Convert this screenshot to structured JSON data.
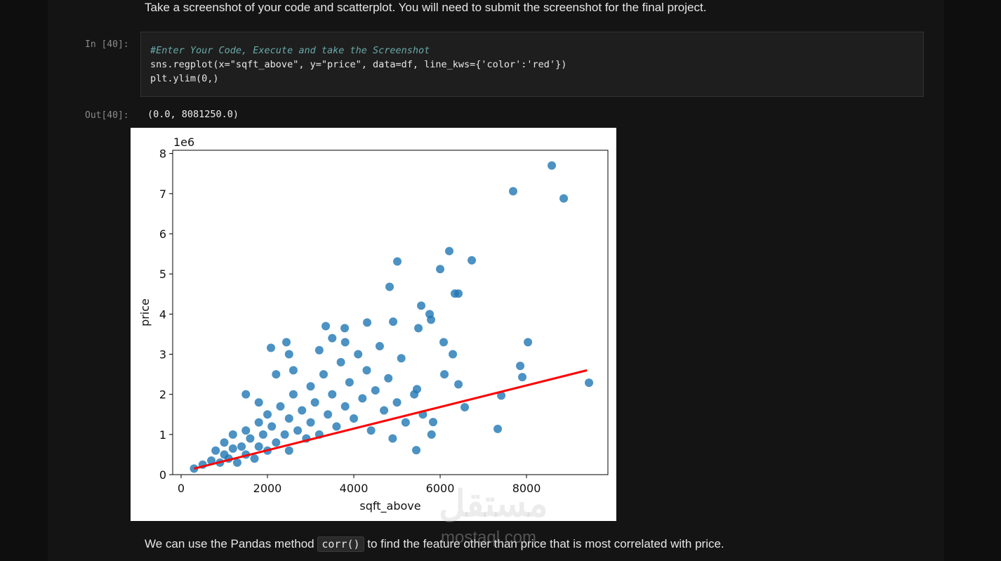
{
  "intro_text": "Take a screenshot of your code and scatterplot. You will need to submit the screenshot for the final project.",
  "input_cell": {
    "prompt": "In [40]:",
    "lines": [
      "#Enter Your Code, Execute and take the Screenshot",
      "sns.regplot(x=\"sqft_above\", y=\"price\", data=df, line_kws={'color':'red'})",
      "plt.ylim(0,)"
    ]
  },
  "output_cell": {
    "prompt": "Out[40]:",
    "text": "(0.0, 8081250.0)"
  },
  "chart_data": {
    "type": "scatter",
    "xlabel": "sqft_above",
    "ylabel": "price",
    "y_offset_label": "1e6",
    "color": "#1f77b4",
    "xlim": [
      -195,
      9885
    ],
    "ylim": [
      0,
      8081250
    ],
    "xticks": [
      0,
      2000,
      4000,
      6000,
      8000
    ],
    "yticks": [
      {
        "value": 0,
        "label": "0"
      },
      {
        "value": 1000000,
        "label": "1"
      },
      {
        "value": 2000000,
        "label": "2"
      },
      {
        "value": 3000000,
        "label": "3"
      },
      {
        "value": 4000000,
        "label": "4"
      },
      {
        "value": 5000000,
        "label": "5"
      },
      {
        "value": 6000000,
        "label": "6"
      },
      {
        "value": 7000000,
        "label": "7"
      },
      {
        "value": 8000000,
        "label": "8"
      }
    ],
    "x": [
      300,
      500,
      700,
      800,
      900,
      1000,
      1000,
      1100,
      1200,
      1200,
      1300,
      1400,
      1500,
      1500,
      1600,
      1700,
      1800,
      1800,
      1900,
      2000,
      2000,
      2100,
      2200,
      2300,
      2400,
      2500,
      2500,
      2600,
      2700,
      2800,
      2900,
      3000,
      3000,
      3100,
      3200,
      3300,
      3400,
      3500,
      3600,
      3700,
      3800,
      3900,
      4000,
      4100,
      4200,
      4300,
      4400,
      4500,
      4600,
      4700,
      4800,
      4900,
      5000,
      5100,
      5200,
      5400,
      5600,
      5800,
      1500,
      2200,
      1800,
      2600,
      3200,
      3800,
      2500,
      3500,
      8585,
      7690,
      8862,
      6211,
      6732,
      5008,
      6000,
      4829,
      6341,
      6423,
      5561,
      5756,
      5789,
      8033,
      6081,
      7854,
      7902,
      9447,
      7415,
      7333,
      4309,
      3789,
      3350,
      2081,
      2439,
      4911,
      5496,
      6293,
      6098,
      6423,
      5463,
      6569,
      5447,
      5837
    ],
    "values": [
      150000,
      250000,
      350000,
      600000,
      300000,
      500000,
      800000,
      400000,
      650000,
      1000000,
      300000,
      700000,
      500000,
      1100000,
      900000,
      400000,
      700000,
      1300000,
      1000000,
      600000,
      1500000,
      1200000,
      800000,
      1700000,
      1000000,
      1400000,
      600000,
      2000000,
      1100000,
      1600000,
      900000,
      2200000,
      1300000,
      1800000,
      1000000,
      2500000,
      1500000,
      2000000,
      1200000,
      2800000,
      1700000,
      2300000,
      1400000,
      3000000,
      1900000,
      2600000,
      1100000,
      2100000,
      3200000,
      1600000,
      2400000,
      900000,
      1800000,
      2900000,
      1300000,
      2000000,
      1500000,
      1000000,
      2000000,
      2500000,
      1800000,
      2600000,
      3100000,
      3300000,
      3000000,
      3400000,
      7700000,
      7060000,
      6880000,
      5570000,
      5340000,
      5310000,
      5120000,
      4680000,
      4510000,
      4510000,
      4210000,
      4000000,
      3860000,
      3300000,
      3300000,
      2710000,
      2430000,
      2290000,
      1970000,
      1140000,
      3790000,
      3650000,
      3700000,
      3160000,
      3300000,
      3810000,
      3650000,
      3000000,
      2500000,
      2250000,
      2130000,
      1680000,
      610000,
      1310000
    ],
    "regression_line": {
      "color": "red",
      "x": [
        300,
        9400
      ],
      "y": [
        150000,
        2600000
      ]
    }
  },
  "bottom_text": {
    "before": "We can use the Pandas method",
    "code": "corr()",
    "after": "to find the feature other than price that is most correlated with price."
  },
  "watermark": [
    "مستقل",
    "mostaql.com"
  ]
}
